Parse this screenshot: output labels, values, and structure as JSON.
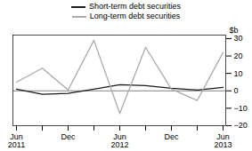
{
  "chart_data": {
    "type": "line",
    "ylabel": "$b",
    "categories": [
      "Jun\n2011",
      null,
      "Dec",
      null,
      "Jun\n2012",
      null,
      "Dec",
      null,
      "Jun\n2013"
    ],
    "series": [
      {
        "name": "Short-term debt securities",
        "color": "#1a1a1a",
        "values": [
          1.0,
          -2.0,
          -1.5,
          1.0,
          3.5,
          3.0,
          1.5,
          0.5,
          2.0
        ]
      },
      {
        "name": "Long-term debt securities",
        "color": "#aaaaaa",
        "values": [
          5.0,
          13.0,
          0.5,
          29.0,
          -13.0,
          25.0,
          1.0,
          -5.5,
          22.0
        ]
      }
    ],
    "ylim": [
      -20,
      32
    ],
    "yticks": [
      -20,
      -10,
      0,
      10,
      20,
      30
    ],
    "grid": false,
    "legend": "top"
  }
}
